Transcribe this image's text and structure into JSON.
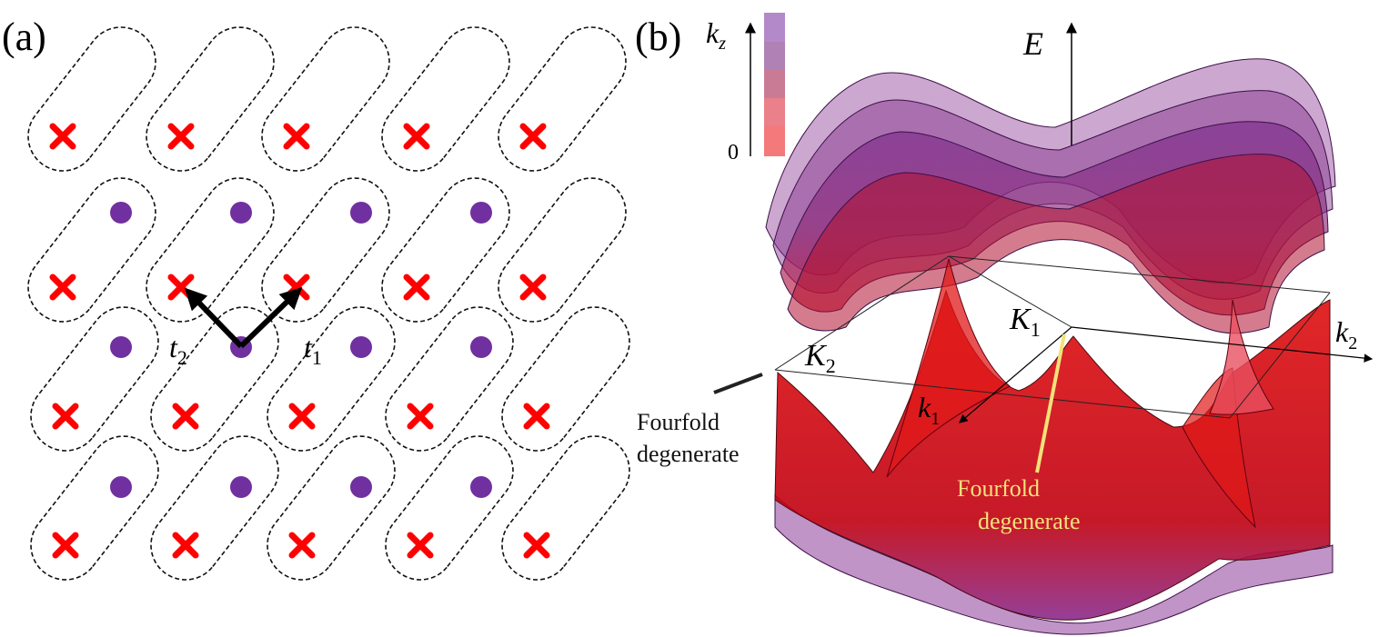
{
  "panel_a": {
    "label": "(a)",
    "hopping_t1": "t",
    "hopping_t1_sub": "1",
    "hopping_t2": "t",
    "hopping_t2_sub": "2",
    "colors": {
      "cross": "#ff0000",
      "dot": "#7030a0",
      "outline": "#111111",
      "arrow": "#000000"
    }
  },
  "panel_b": {
    "label": "(b)",
    "axis_energy": "E",
    "axis_kz": "k",
    "axis_kz_sub": "z",
    "colorbar_zero": "0",
    "axis_k1": "k",
    "axis_k1_sub": "1",
    "axis_k2": "k",
    "axis_k2_sub": "2",
    "point_K1": "K",
    "point_K1_sub": "1",
    "point_K2": "K",
    "point_K2_sub": "2",
    "annotation_left": [
      "Fourfold",
      "degenerate"
    ],
    "annotation_center": [
      "Fourfold",
      "degenerate"
    ],
    "colorbar_colors": [
      "#b489c9",
      "#b081b5",
      "#c97b96",
      "#e9808a",
      "#f4797b"
    ],
    "colors": {
      "band_low": "#d40000",
      "band_high": "#7a2a8c",
      "annotation_center": "#f3e27a"
    }
  }
}
